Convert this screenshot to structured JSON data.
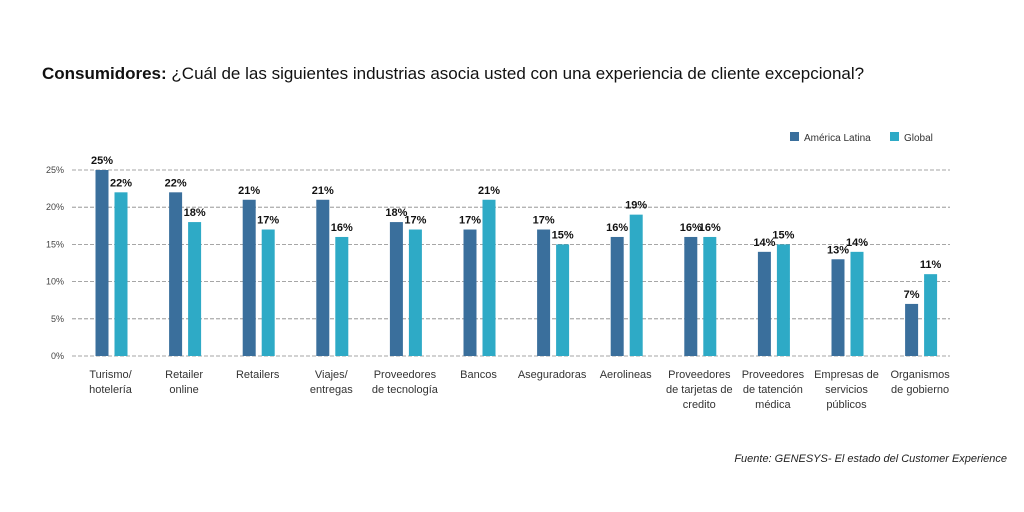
{
  "title": {
    "bold": "Consumidores:",
    "text": " ¿Cuál de las siguientes industrias asocia usted con una experiencia de cliente excepcional?"
  },
  "source": "Fuente: GENESYS- El estado del Customer Experience",
  "chart_data": {
    "type": "bar",
    "categories": [
      [
        "Turismo/",
        "hotelería"
      ],
      [
        "Retailer",
        "online"
      ],
      [
        "Retailers"
      ],
      [
        "Viajes/",
        "entregas"
      ],
      [
        "Proveedores",
        "de tecnología"
      ],
      [
        "Bancos"
      ],
      [
        "Aseguradoras"
      ],
      [
        "Aerolineas"
      ],
      [
        "Proveedores",
        "de tarjetas de",
        "credito"
      ],
      [
        "Proveedores",
        "de tatención",
        "médica"
      ],
      [
        "Empresas de",
        "servicios",
        "públicos"
      ],
      [
        "Organismos",
        "de gobierno"
      ]
    ],
    "series": [
      {
        "name": "América Latina",
        "color": "#3a6f9c",
        "values": [
          25,
          22,
          21,
          21,
          18,
          17,
          17,
          16,
          16,
          14,
          13,
          7
        ]
      },
      {
        "name": "Global",
        "color": "#2eaac6",
        "values": [
          22,
          18,
          17,
          16,
          17,
          21,
          15,
          19,
          16,
          15,
          14,
          11
        ]
      }
    ],
    "yticks": [
      "0%",
      "5%",
      "10%",
      "15%",
      "20%",
      "25%"
    ],
    "ylim": [
      0,
      25
    ],
    "grid": true,
    "legend": "top-right",
    "xlabel": "",
    "ylabel": ""
  }
}
